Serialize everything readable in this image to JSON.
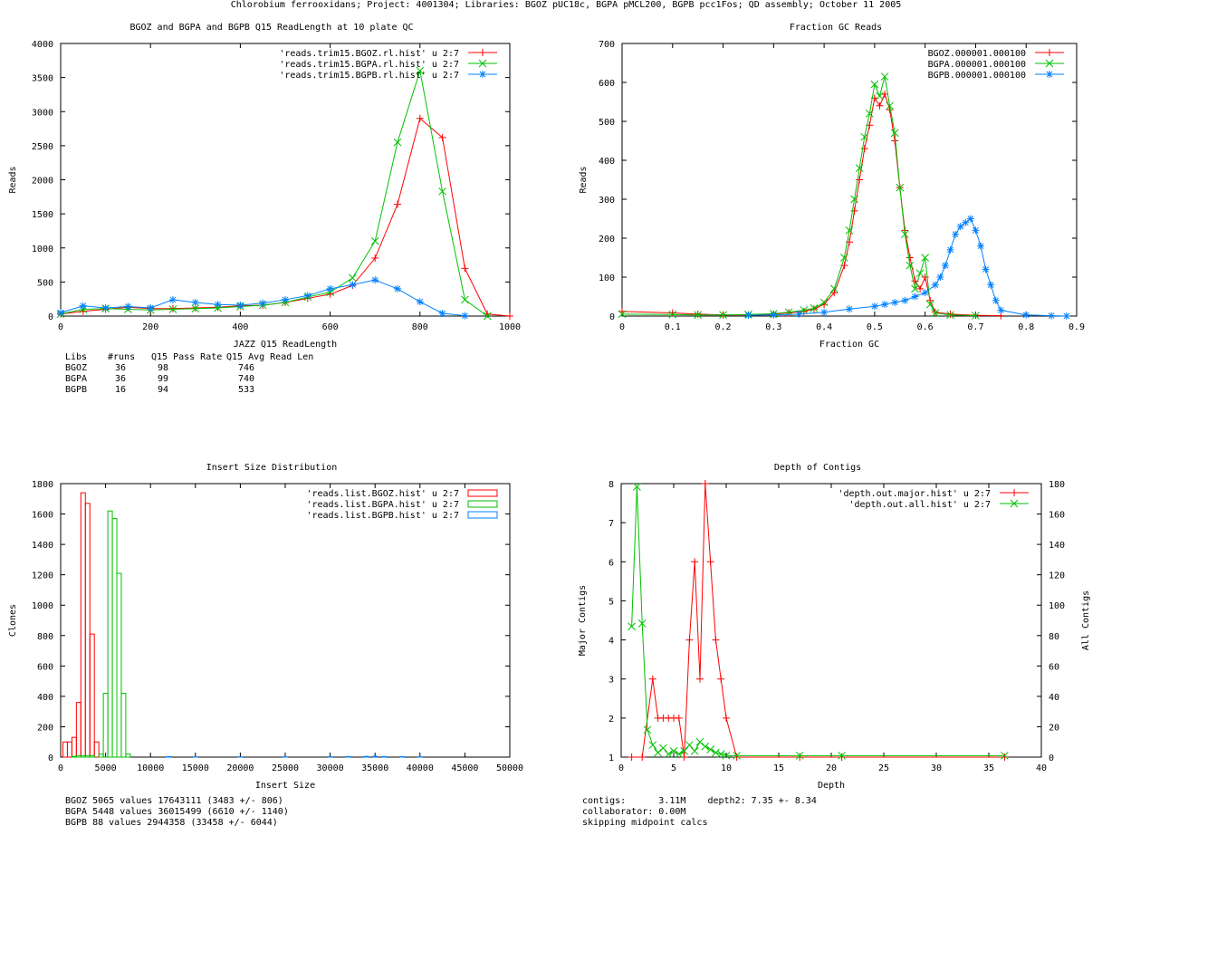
{
  "page": {
    "title": "Chlorobium ferrooxidans; Project: 4001304; Libraries: BGOZ pUC18c, BGPA pMCL200, BGPB pcc1Fos; QD assembly; October 11 2005"
  },
  "colors": {
    "red": "#ff0000",
    "green": "#00c000",
    "blue": "#0080ff"
  },
  "chart_data": [
    {
      "type": "line",
      "title": "BGOZ and BGPA and BGPB Q15 ReadLength at 10 plate QC",
      "xlabel": "JAZZ Q15 ReadLength",
      "ylabel": "Reads",
      "xlim": [
        0,
        1000
      ],
      "ylim": [
        0,
        4000
      ],
      "xticks": [
        0,
        200,
        400,
        600,
        800,
        1000
      ],
      "yticks": [
        0,
        500,
        1000,
        1500,
        2000,
        2500,
        3000,
        3500,
        4000
      ],
      "legend": "top-right",
      "series": [
        {
          "name": "'reads.trim15.BGOZ.rl.hist' u 2:7",
          "marker": "plus",
          "color": "#ff0000",
          "x": [
            0,
            50,
            100,
            150,
            200,
            250,
            300,
            350,
            400,
            450,
            500,
            550,
            600,
            650,
            700,
            750,
            800,
            850,
            900,
            950,
            1000
          ],
          "y": [
            30,
            70,
            100,
            130,
            110,
            110,
            120,
            130,
            150,
            160,
            200,
            260,
            320,
            450,
            850,
            1640,
            2900,
            2620,
            700,
            30,
            0
          ]
        },
        {
          "name": "'reads.trim15.BGPA.rl.hist' u 2:7",
          "marker": "x",
          "color": "#00c000",
          "x": [
            0,
            50,
            100,
            150,
            200,
            250,
            300,
            350,
            400,
            450,
            500,
            550,
            600,
            650,
            700,
            750,
            800,
            850,
            900,
            950
          ],
          "y": [
            30,
            100,
            110,
            100,
            90,
            100,
            110,
            120,
            140,
            160,
            200,
            280,
            350,
            560,
            1100,
            2550,
            3600,
            1830,
            240,
            0
          ]
        },
        {
          "name": "'reads.trim15.BGPB.rl.hist' u 2:7",
          "marker": "star",
          "color": "#0080ff",
          "x": [
            0,
            50,
            100,
            150,
            200,
            250,
            300,
            350,
            400,
            450,
            500,
            550,
            600,
            650,
            700,
            750,
            800,
            850,
            900
          ],
          "y": [
            50,
            150,
            120,
            140,
            120,
            240,
            200,
            170,
            160,
            190,
            240,
            300,
            400,
            460,
            530,
            400,
            210,
            40,
            5
          ]
        }
      ],
      "stats_table": {
        "header": [
          "Libs",
          "#runs",
          "Q15 Pass Rate",
          "Q15 Avg Read Len"
        ],
        "rows": [
          [
            "BGOZ",
            "36",
            "98",
            "746"
          ],
          [
            "BGPA",
            "36",
            "99",
            "740"
          ],
          [
            "BGPB",
            "16",
            "94",
            "533"
          ]
        ]
      }
    },
    {
      "type": "line",
      "title": "Fraction GC Reads",
      "xlabel": "Fraction GC",
      "ylabel": "Reads",
      "xlim": [
        0,
        0.9
      ],
      "ylim": [
        0,
        700
      ],
      "xticks": [
        0,
        0.1,
        0.2,
        0.3,
        0.4,
        0.5,
        0.6,
        0.7,
        0.8,
        0.9
      ],
      "yticks": [
        0,
        100,
        200,
        300,
        400,
        500,
        600,
        700
      ],
      "legend": "top-right",
      "series": [
        {
          "name": "BGOZ.000001.000100",
          "marker": "plus",
          "color": "#ff0000",
          "x": [
            0,
            0.1,
            0.15,
            0.2,
            0.25,
            0.3,
            0.33,
            0.36,
            0.38,
            0.4,
            0.42,
            0.44,
            0.45,
            0.46,
            0.47,
            0.48,
            0.49,
            0.5,
            0.51,
            0.52,
            0.53,
            0.54,
            0.55,
            0.56,
            0.57,
            0.58,
            0.59,
            0.6,
            0.61,
            0.62,
            0.65,
            0.7,
            0.75
          ],
          "y": [
            12,
            8,
            5,
            3,
            3,
            5,
            8,
            12,
            18,
            30,
            60,
            130,
            190,
            270,
            350,
            430,
            490,
            560,
            540,
            570,
            530,
            450,
            330,
            220,
            150,
            90,
            70,
            100,
            40,
            10,
            5,
            2,
            1
          ]
        },
        {
          "name": "BGPA.000001.000100",
          "marker": "x",
          "color": "#00c000",
          "x": [
            0,
            0.1,
            0.15,
            0.2,
            0.25,
            0.3,
            0.33,
            0.36,
            0.38,
            0.4,
            0.42,
            0.44,
            0.45,
            0.46,
            0.47,
            0.48,
            0.49,
            0.5,
            0.51,
            0.52,
            0.53,
            0.54,
            0.55,
            0.56,
            0.57,
            0.58,
            0.59,
            0.6,
            0.61,
            0.62,
            0.65,
            0.7
          ],
          "y": [
            5,
            4,
            3,
            3,
            4,
            6,
            10,
            15,
            20,
            35,
            70,
            150,
            220,
            300,
            380,
            460,
            520,
            595,
            565,
            615,
            540,
            470,
            330,
            210,
            130,
            70,
            110,
            150,
            30,
            8,
            3,
            1
          ]
        },
        {
          "name": "BGPB.000001.000100",
          "marker": "star",
          "color": "#0080ff",
          "x": [
            0.25,
            0.3,
            0.35,
            0.4,
            0.45,
            0.5,
            0.52,
            0.54,
            0.56,
            0.58,
            0.6,
            0.62,
            0.63,
            0.64,
            0.65,
            0.66,
            0.67,
            0.68,
            0.69,
            0.7,
            0.71,
            0.72,
            0.73,
            0.74,
            0.75,
            0.8,
            0.85,
            0.88
          ],
          "y": [
            2,
            3,
            5,
            10,
            18,
            25,
            30,
            35,
            40,
            50,
            60,
            80,
            100,
            130,
            170,
            210,
            230,
            240,
            250,
            220,
            180,
            120,
            80,
            40,
            15,
            3,
            1,
            0
          ]
        }
      ]
    },
    {
      "type": "bar",
      "title": "Insert Size Distribution",
      "xlabel": "Insert Size",
      "ylabel": "Clones",
      "xlim": [
        0,
        50000
      ],
      "ylim": [
        0,
        1800
      ],
      "xticks": [
        0,
        5000,
        10000,
        15000,
        20000,
        25000,
        30000,
        35000,
        40000,
        45000,
        50000
      ],
      "yticks": [
        0,
        200,
        400,
        600,
        800,
        1000,
        1200,
        1400,
        1600,
        1800
      ],
      "bin_width": 500,
      "legend": "top-right",
      "series": [
        {
          "name": "'reads.list.BGOZ.hist' u 2:7",
          "color": "#ff0000",
          "x": [
            500,
            1000,
            1500,
            2000,
            2500,
            3000,
            3500,
            4000,
            4500
          ],
          "y": [
            100,
            100,
            130,
            360,
            1740,
            1670,
            810,
            100,
            0
          ]
        },
        {
          "name": "'reads.list.BGPA.hist' u 2:7",
          "color": "#00c000",
          "x": [
            1500,
            2000,
            2500,
            3000,
            3500,
            4500,
            5000,
            5500,
            6000,
            6500,
            7000,
            7500
          ],
          "y": [
            5,
            10,
            10,
            10,
            10,
            20,
            420,
            1620,
            1570,
            1210,
            420,
            20
          ]
        },
        {
          "name": "'reads.list.BGPB.hist' u 2:7",
          "color": "#0080ff",
          "x": [
            12000,
            15000,
            20000,
            25000,
            30000,
            32000,
            34000,
            35000,
            36000,
            38000,
            40000
          ],
          "y": [
            3,
            2,
            2,
            2,
            3,
            4,
            5,
            6,
            4,
            3,
            2
          ]
        }
      ],
      "stats": [
        "BGOZ 5065 values 17643111 (3483 +/- 806)",
        "BGPA 5448 values 36015499 (6610 +/- 1140)",
        "BGPB 88 values 2944358 (33458 +/- 6044)"
      ]
    },
    {
      "type": "line",
      "title": "Depth of Contigs",
      "xlabel": "Depth",
      "ylabel": "Major Contigs",
      "y2label": "All Contigs",
      "xlim": [
        0,
        40
      ],
      "ylim": [
        1,
        8
      ],
      "y2lim": [
        0,
        180
      ],
      "xticks": [
        0,
        5,
        10,
        15,
        20,
        25,
        30,
        35,
        40
      ],
      "yticks": [
        1,
        2,
        3,
        4,
        5,
        6,
        7,
        8
      ],
      "y2ticks": [
        0,
        20,
        40,
        60,
        80,
        100,
        120,
        140,
        160,
        180
      ],
      "legend": "top-right",
      "series": [
        {
          "name": "'depth.out.major.hist' u 2:7",
          "marker": "plus",
          "color": "#ff0000",
          "axis": "y",
          "x": [
            1,
            2,
            3,
            3.5,
            4,
            4.5,
            5,
            5.5,
            6,
            6.5,
            7,
            7.5,
            8,
            8.5,
            9,
            9.5,
            10,
            11,
            17,
            21,
            36.5
          ],
          "y": [
            1,
            1,
            3,
            2,
            2,
            2,
            2,
            2,
            1,
            4,
            6,
            3,
            8,
            6,
            4,
            3,
            2,
            1,
            1,
            1,
            1
          ]
        },
        {
          "name": "'depth.out.all.hist' u 2:7",
          "marker": "x",
          "color": "#00c000",
          "axis": "y2",
          "x": [
            1,
            1.5,
            2,
            2.5,
            3,
            3.5,
            4,
            4.5,
            5,
            5.5,
            6,
            6.5,
            7,
            7.5,
            8,
            8.5,
            9,
            9.5,
            10,
            11,
            17,
            21,
            36.5
          ],
          "y": [
            86,
            178,
            88,
            18,
            8,
            3,
            6,
            2,
            4,
            2,
            4,
            8,
            4,
            10,
            7,
            5,
            3,
            2,
            1,
            1,
            1,
            1,
            1
          ]
        }
      ],
      "stats": [
        "contigs:      3.11M    depth2: 7.35 +- 8.34",
        "collaborator: 0.00M",
        "skipping midpoint calcs"
      ]
    }
  ]
}
